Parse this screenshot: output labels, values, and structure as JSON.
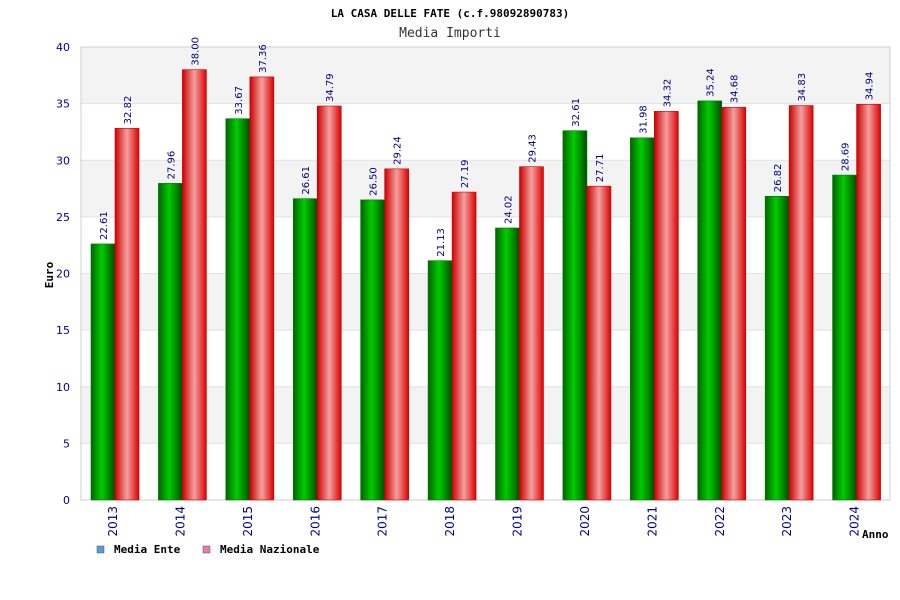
{
  "chart_data": {
    "type": "bar",
    "title": "LA CASA DELLE FATE (c.f.98092890783)",
    "subtitle": "Media Importi",
    "xlabel": "Anno",
    "ylabel": "Euro",
    "ylim": [
      0,
      40
    ],
    "yticks": [
      0,
      5,
      10,
      15,
      20,
      25,
      30,
      35,
      40
    ],
    "grid": true,
    "legend_position": "bottom-left",
    "categories": [
      "2013",
      "2014",
      "2015",
      "2016",
      "2017",
      "2018",
      "2019",
      "2020",
      "2021",
      "2022",
      "2023",
      "2024"
    ],
    "series": [
      {
        "name": "Media Ente",
        "color": "#00b000",
        "legend_color": "#5b9bd5",
        "values": [
          22.61,
          27.96,
          33.67,
          26.61,
          26.5,
          21.13,
          24.02,
          32.61,
          31.98,
          35.24,
          26.82,
          28.69
        ],
        "labels": [
          "22.61",
          "27.96",
          "33.67",
          "26.61",
          "26.50",
          "21.13",
          "24.02",
          "32.61",
          "31.98",
          "35.24",
          "26.82",
          "28.69"
        ]
      },
      {
        "name": "Media Nazionale",
        "color": "#ee2222",
        "legend_color": "#e07bb5",
        "values": [
          32.82,
          38.0,
          37.36,
          34.79,
          29.24,
          27.19,
          29.43,
          27.71,
          34.32,
          34.68,
          34.83,
          34.94
        ],
        "labels": [
          "32.82",
          "38.00",
          "37.36",
          "34.79",
          "29.24",
          "27.19",
          "29.43",
          "27.71",
          "34.32",
          "34.68",
          "34.83",
          "34.94"
        ]
      }
    ]
  }
}
